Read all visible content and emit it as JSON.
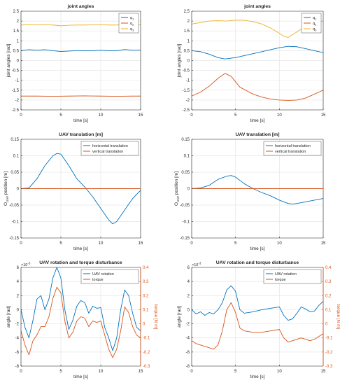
{
  "colors": {
    "blue": "#0072BD",
    "orange": "#D95319",
    "yellow": "#EDB120",
    "axis": "#262626",
    "grid": "#e6e6e6"
  },
  "chart_data": [
    {
      "type": "line",
      "title": "joint angles",
      "xlabel": "time [s]",
      "ylabel": "joint angles [rad]",
      "xlim": [
        0,
        15
      ],
      "ylim": [
        -2.5,
        2.5
      ],
      "xticks": [
        0,
        5,
        10,
        15
      ],
      "yticks": [
        -2.5,
        -2,
        -1.5,
        -1,
        -0.5,
        0,
        0.5,
        1,
        1.5,
        2,
        2.5
      ],
      "grid": true,
      "legend": "top-right",
      "series": [
        {
          "name": "q1",
          "label": "q",
          "sub": "1",
          "color": "blue",
          "x": [
            0,
            1,
            2,
            3,
            4,
            5,
            6,
            7,
            8,
            9,
            10,
            11,
            12,
            13,
            14,
            15
          ],
          "y": [
            0.5,
            0.55,
            0.52,
            0.55,
            0.5,
            0.46,
            0.48,
            0.5,
            0.5,
            0.5,
            0.52,
            0.5,
            0.5,
            0.56,
            0.52,
            0.53
          ]
        },
        {
          "name": "q2",
          "label": "q",
          "sub": "2",
          "color": "orange",
          "x": [
            0,
            2,
            4,
            6,
            8,
            10,
            12,
            14,
            15
          ],
          "y": [
            -1.8,
            -1.8,
            -1.81,
            -1.8,
            -1.79,
            -1.8,
            -1.81,
            -1.8,
            -1.8
          ]
        },
        {
          "name": "q3",
          "label": "q",
          "sub": "3",
          "color": "yellow",
          "x": [
            0,
            1,
            2,
            3,
            4,
            5,
            6,
            7,
            8,
            9,
            10,
            11,
            12,
            13,
            14,
            15
          ],
          "y": [
            1.8,
            1.82,
            1.81,
            1.82,
            1.8,
            1.76,
            1.79,
            1.8,
            1.8,
            1.81,
            1.82,
            1.8,
            1.8,
            1.83,
            1.8,
            1.82
          ]
        }
      ]
    },
    {
      "type": "line",
      "title": "joint angles",
      "xlabel": "time [s]",
      "ylabel": "joint angles [rad]",
      "xlim": [
        0,
        15
      ],
      "ylim": [
        -2.5,
        2.5
      ],
      "xticks": [
        0,
        5,
        10,
        15
      ],
      "yticks": [
        -2.5,
        -2,
        -1.5,
        -1,
        -0.5,
        0,
        0.5,
        1,
        1.5,
        2,
        2.5
      ],
      "grid": true,
      "legend": "top-right",
      "series": [
        {
          "name": "q1",
          "label": "q",
          "sub": "1",
          "color": "blue",
          "x": [
            0,
            1,
            2,
            3,
            3.8,
            5,
            6,
            7,
            8,
            9,
            10,
            11,
            12,
            13,
            14,
            15
          ],
          "y": [
            0.5,
            0.45,
            0.32,
            0.15,
            0.08,
            0.15,
            0.25,
            0.35,
            0.45,
            0.55,
            0.65,
            0.72,
            0.7,
            0.6,
            0.5,
            0.4
          ]
        },
        {
          "name": "q2",
          "label": "q",
          "sub": "2",
          "color": "orange",
          "x": [
            0,
            1,
            2,
            3,
            3.8,
            4.5,
            5.5,
            7,
            8,
            9,
            10,
            11,
            12,
            13,
            14,
            15
          ],
          "y": [
            -1.8,
            -1.6,
            -1.3,
            -0.9,
            -0.65,
            -0.8,
            -1.35,
            -1.7,
            -1.85,
            -1.95,
            -2.0,
            -2.02,
            -2.0,
            -1.9,
            -1.7,
            -1.5
          ]
        },
        {
          "name": "q3",
          "label": "q",
          "sub": "3",
          "color": "yellow",
          "x": [
            0,
            1,
            2,
            3,
            4,
            5,
            6,
            7,
            8,
            9,
            10,
            10.5,
            11,
            12,
            13,
            14,
            15
          ],
          "y": [
            1.85,
            1.92,
            2.0,
            2.02,
            2.0,
            2.05,
            2.04,
            1.97,
            1.85,
            1.65,
            1.38,
            1.23,
            1.17,
            1.45,
            1.75,
            1.93,
            2.0
          ]
        }
      ]
    },
    {
      "type": "line",
      "title": "UAV translation [m]",
      "xlabel": "time [s]",
      "ylabel": "O_UAV position [m]",
      "ylabel_main": "O",
      "ylabel_sub": "UAV",
      "ylabel_tail": " position [m]",
      "xlim": [
        0,
        15
      ],
      "ylim": [
        -0.15,
        0.15
      ],
      "xticks": [
        0,
        5,
        10,
        15
      ],
      "yticks": [
        -0.15,
        -0.1,
        -0.05,
        0,
        0.05,
        0.1,
        0.15
      ],
      "grid": true,
      "legend": "top-right",
      "series": [
        {
          "name": "horizontal translation",
          "label": "horizontal translation",
          "color": "blue",
          "x": [
            0,
            1,
            2,
            3,
            4,
            4.5,
            5,
            6,
            7,
            8,
            9,
            10,
            11,
            11.5,
            12,
            13,
            14,
            15
          ],
          "y": [
            0,
            0.002,
            0.03,
            0.07,
            0.1,
            0.107,
            0.105,
            0.07,
            0.03,
            0.005,
            -0.025,
            -0.06,
            -0.095,
            -0.107,
            -0.1,
            -0.065,
            -0.03,
            -0.005
          ]
        },
        {
          "name": "vertical translation",
          "label": "vertical translation",
          "color": "orange",
          "x": [
            0,
            15
          ],
          "y": [
            0,
            0
          ]
        }
      ]
    },
    {
      "type": "line",
      "title": "UAV translation [m]",
      "xlabel": "time [s]",
      "ylabel": "O_UAV position [m]",
      "ylabel_main": "O",
      "ylabel_sub": "UAV",
      "ylabel_tail": " position [m]",
      "xlim": [
        0,
        15
      ],
      "ylim": [
        -0.15,
        0.15
      ],
      "xticks": [
        0,
        5,
        10,
        15
      ],
      "yticks": [
        -0.15,
        -0.1,
        -0.05,
        0,
        0.05,
        0.1,
        0.15
      ],
      "grid": true,
      "legend": "top-right",
      "series": [
        {
          "name": "horizontal translation",
          "label": "horizontal translation",
          "color": "blue",
          "x": [
            0,
            1,
            2,
            3,
            4,
            4.5,
            5,
            6,
            7,
            8,
            9,
            10,
            11,
            11.5,
            12,
            13,
            14,
            15
          ],
          "y": [
            0,
            0.002,
            0.01,
            0.028,
            0.038,
            0.04,
            0.035,
            0.015,
            0.0,
            -0.012,
            -0.022,
            -0.035,
            -0.045,
            -0.047,
            -0.045,
            -0.04,
            -0.035,
            -0.03
          ]
        },
        {
          "name": "vertical translation",
          "label": "vertical translation",
          "color": "orange",
          "x": [
            0,
            15
          ],
          "y": [
            0,
            0
          ]
        }
      ]
    },
    {
      "type": "line",
      "title": "UAV rotation and torque disturbance",
      "xlabel": "time [s]",
      "ylabel": "angle [rad]",
      "ylabel_right": "torque [N m]",
      "exponent": "×10",
      "exponent_power": "-3",
      "xlim": [
        0,
        15
      ],
      "ylim": [
        -8,
        6
      ],
      "ylim_right": [
        -0.3,
        0.4
      ],
      "xticks": [
        0,
        5,
        10,
        15
      ],
      "yticks": [
        -8,
        -6,
        -4,
        -2,
        0,
        2,
        4,
        6
      ],
      "yticks_right": [
        -0.3,
        -0.2,
        -0.1,
        0,
        0.1,
        0.2,
        0.3,
        0.4
      ],
      "grid": true,
      "legend": "top-right",
      "series": [
        {
          "name": "UAV rotation",
          "label": "UAV rotation",
          "color": "blue",
          "axis": "left",
          "x": [
            0,
            0.5,
            1,
            1.5,
            2,
            2.5,
            3,
            3.5,
            4,
            4.5,
            5,
            5.5,
            6,
            6.5,
            7,
            7.5,
            8,
            8.5,
            9,
            9.5,
            10,
            10.5,
            11,
            11.5,
            12,
            12.5,
            13,
            13.5,
            14,
            14.5,
            15
          ],
          "y": [
            0,
            -2.5,
            -4,
            -1.5,
            1.5,
            2,
            0,
            1.5,
            4.5,
            6,
            4.5,
            0,
            -2.8,
            -1.5,
            0.5,
            1.3,
            1,
            -0.5,
            0.5,
            0.2,
            0.3,
            -2.5,
            -4,
            -5.8,
            -4,
            0,
            2.8,
            2,
            -0.5,
            -2.5,
            -3
          ]
        },
        {
          "name": "torque",
          "label": "torque",
          "color": "orange",
          "axis": "right",
          "x": [
            0,
            0.5,
            1,
            1.5,
            2,
            2.5,
            3,
            3.5,
            4,
            4.5,
            5,
            5.5,
            6,
            6.5,
            7,
            7.5,
            8,
            8.5,
            9,
            9.5,
            10,
            10.5,
            11,
            11.5,
            12,
            12.5,
            13,
            13.5,
            14,
            14.5,
            15
          ],
          "y": [
            -0.05,
            -0.15,
            -0.22,
            -0.12,
            -0.08,
            -0.02,
            -0.02,
            0.05,
            0.18,
            0.26,
            0.22,
            0.02,
            -0.1,
            -0.06,
            0.02,
            0.05,
            0.04,
            -0.02,
            0.02,
            0.01,
            0.02,
            -0.08,
            -0.18,
            -0.24,
            -0.18,
            -0.05,
            0.12,
            0.08,
            -0.02,
            -0.08,
            -0.1
          ]
        }
      ]
    },
    {
      "type": "line",
      "title": "UAV rotation and torque disturbance",
      "xlabel": "time [s]",
      "ylabel": "angle [rad]",
      "ylabel_right": "torque [N m]",
      "exponent": "×10",
      "exponent_power": "-3",
      "xlim": [
        0,
        15
      ],
      "ylim": [
        -8,
        6
      ],
      "ylim_right": [
        -0.3,
        0.4
      ],
      "xticks": [
        0,
        5,
        10,
        15
      ],
      "yticks": [
        -8,
        -6,
        -4,
        -2,
        0,
        2,
        4,
        6
      ],
      "yticks_right": [
        -0.3,
        -0.2,
        -0.1,
        0,
        0.1,
        0.2,
        0.3,
        0.4
      ],
      "grid": true,
      "legend": "top-right",
      "series": [
        {
          "name": "UAV rotation",
          "label": "UAV rotation",
          "color": "blue",
          "axis": "left",
          "x": [
            0,
            0.5,
            1,
            1.5,
            2,
            2.5,
            3,
            3.5,
            4,
            4.5,
            5,
            5.5,
            6,
            7,
            8,
            9,
            10,
            10.5,
            11,
            11.5,
            12,
            12.5,
            13,
            13.5,
            14,
            14.5,
            15
          ],
          "y": [
            0,
            -0.6,
            -0.3,
            -0.8,
            -0.4,
            -0.6,
            0,
            1,
            2.8,
            3.4,
            2.6,
            0,
            -0.5,
            -0.3,
            0,
            0.2,
            0.4,
            -0.8,
            -1.5,
            -1.3,
            -0.5,
            0.4,
            0.1,
            -0.3,
            -0.2,
            0.6,
            1.2
          ]
        },
        {
          "name": "torque",
          "label": "torque",
          "color": "orange",
          "axis": "right",
          "x": [
            0,
            0.5,
            1,
            1.5,
            2,
            2.5,
            3,
            3.5,
            4,
            4.5,
            5,
            5.5,
            6,
            7,
            8,
            9,
            10,
            10.5,
            11,
            11.5,
            12,
            12.5,
            13,
            13.5,
            14,
            14.5,
            15
          ],
          "y": [
            -0.12,
            -0.14,
            -0.15,
            -0.16,
            -0.17,
            -0.18,
            -0.15,
            -0.05,
            0.1,
            0.15,
            0.08,
            -0.03,
            -0.05,
            -0.06,
            -0.06,
            -0.05,
            -0.04,
            -0.1,
            -0.13,
            -0.12,
            -0.11,
            -0.1,
            -0.11,
            -0.12,
            -0.11,
            -0.09,
            -0.07
          ]
        }
      ]
    }
  ]
}
